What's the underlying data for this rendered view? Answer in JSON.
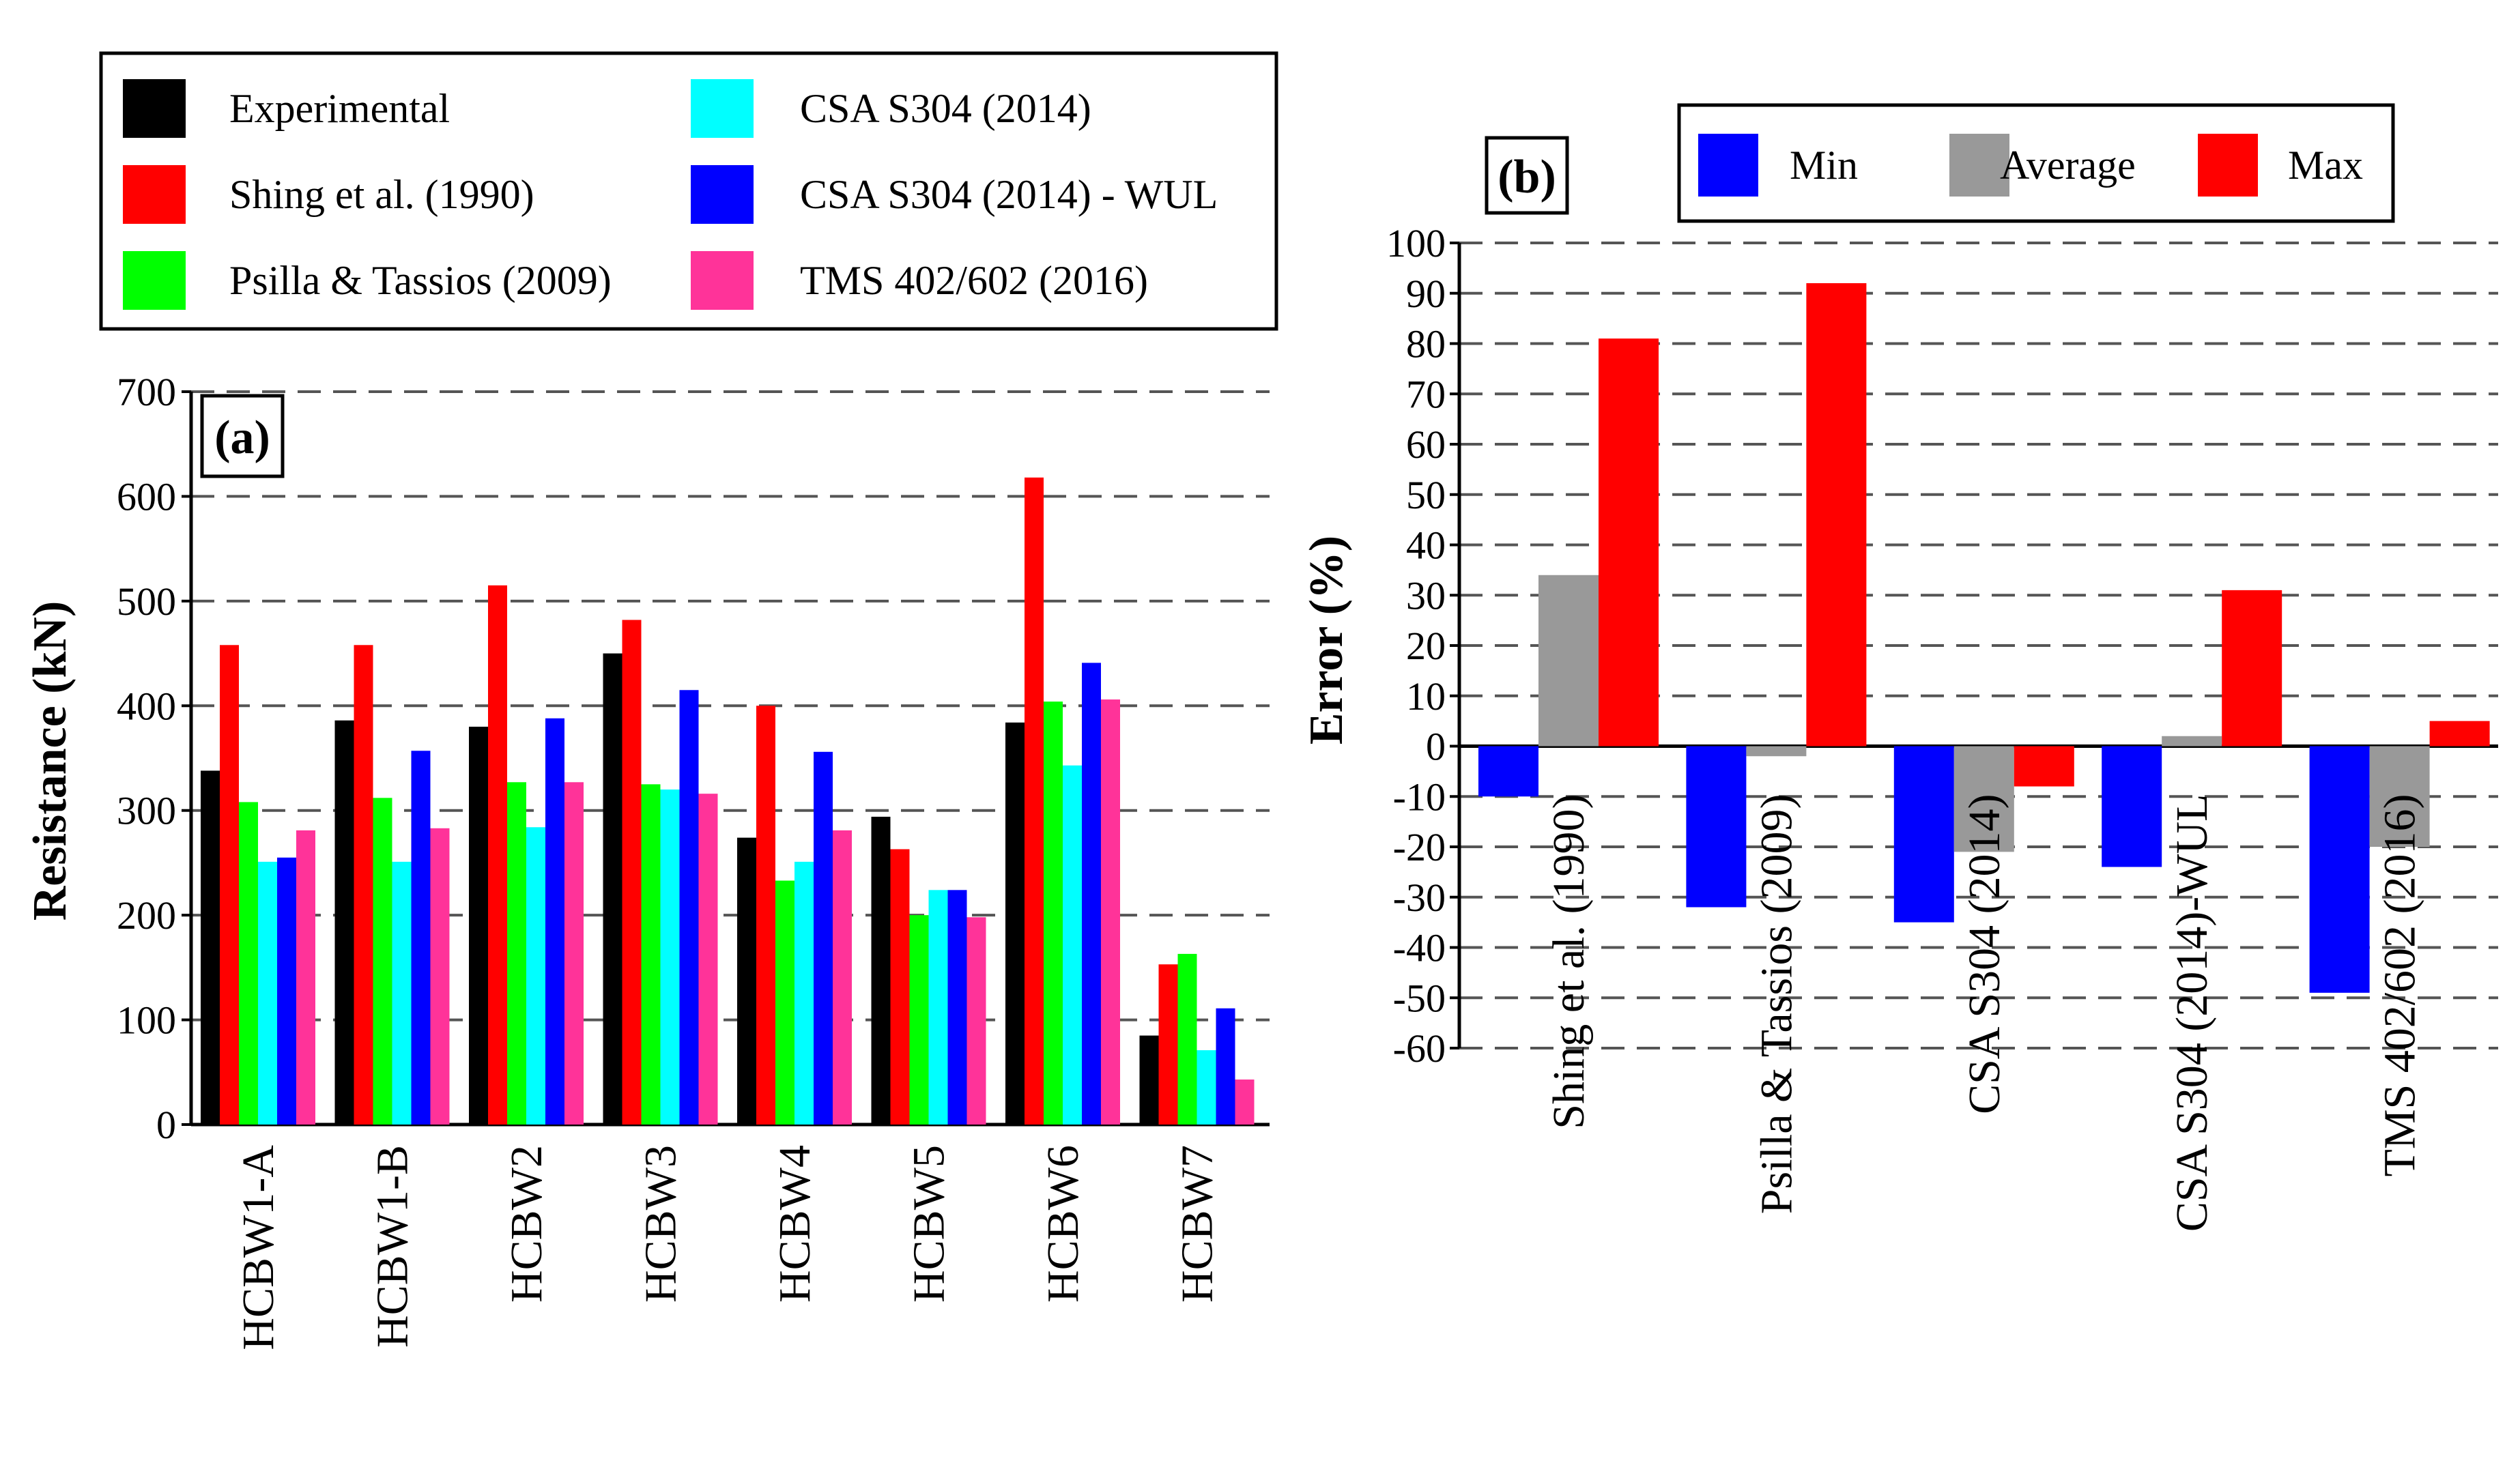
{
  "chart_data": [
    {
      "type": "bar",
      "panel_label": "(a)",
      "ylabel": "Resistance (kN)",
      "ylim": [
        0,
        700
      ],
      "yticks": [
        0,
        100,
        200,
        300,
        400,
        500,
        600,
        700
      ],
      "grid": "horizontal dashed",
      "categories": [
        "HCBW1-A",
        "HCBW1-B",
        "HCBW2",
        "HCBW3",
        "HCBW4",
        "HCBW5",
        "HCBW6",
        "HCBW7"
      ],
      "series": [
        {
          "name": "Experimental",
          "color": "#000000",
          "values": [
            338,
            386,
            380,
            450,
            274,
            294,
            384,
            85
          ]
        },
        {
          "name": "Shing et al. (1990)",
          "color": "#ff0000",
          "values": [
            458,
            458,
            515,
            482,
            400,
            263,
            618,
            153
          ]
        },
        {
          "name": "Psilla & Tassios (2009)",
          "color": "#00ff00",
          "values": [
            308,
            312,
            327,
            325,
            233,
            200,
            404,
            163
          ]
        },
        {
          "name": "CSA S304 (2014)",
          "color": "#00ffff",
          "values": [
            251,
            251,
            284,
            320,
            251,
            224,
            343,
            71
          ]
        },
        {
          "name": "CSA S304 (2014) - WUL",
          "color": "#0000ff",
          "values": [
            255,
            357,
            388,
            415,
            356,
            224,
            441,
            111
          ]
        },
        {
          "name": "TMS 402/602 (2016)",
          "color": "#ff3399",
          "values": [
            281,
            283,
            327,
            316,
            281,
            198,
            406,
            43
          ]
        }
      ]
    },
    {
      "type": "bar",
      "panel_label": "(b)",
      "ylabel": "Error (%)",
      "ylim": [
        -60,
        100
      ],
      "yticks": [
        -60,
        -50,
        -40,
        -30,
        -20,
        -10,
        0,
        10,
        20,
        30,
        40,
        50,
        60,
        70,
        80,
        90,
        100
      ],
      "grid": "horizontal dashed",
      "categories": [
        "Shing et al. (1990)",
        "Psilla & Tassios (2009)",
        "CSA S304 (2014)",
        "CSA S304 (2014)-WUL",
        "TMS 402/602 (2016)"
      ],
      "series": [
        {
          "name": "Min",
          "color": "#0000ff",
          "values": [
            -10,
            -32,
            -35,
            -24,
            -49
          ]
        },
        {
          "name": "Average",
          "color": "#999999",
          "values": [
            34,
            -2,
            -21,
            2,
            -20
          ]
        },
        {
          "name": "Max",
          "color": "#ff0000",
          "values": [
            81,
            92,
            -8,
            31,
            5
          ]
        }
      ]
    }
  ]
}
